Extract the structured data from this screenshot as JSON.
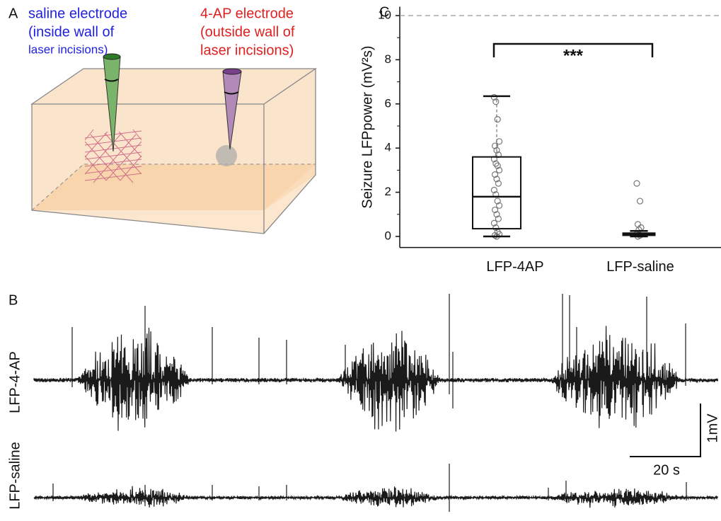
{
  "panel_labels": {
    "a": "A",
    "b": "B",
    "c": "C"
  },
  "diagram": {
    "saline_label": [
      "saline electrode",
      "(inside wall of",
      "laser incisions)"
    ],
    "ap_label": [
      "4-AP electrode",
      "(outside wall of",
      "laser incisions)"
    ]
  },
  "traces": {
    "labels": [
      "LFP-4-AP",
      "LFP-saline"
    ],
    "scale_y": "1mV",
    "scale_x": "20 s"
  },
  "chart_data": {
    "type": "box",
    "ylabel": "Seizure LFPpower (mV²s)",
    "categories": [
      "LFP-4AP",
      "LFP-saline"
    ],
    "boxes": [
      {
        "whisker_low": 0,
        "q1": 0.35,
        "median": 1.8,
        "q3": 3.6,
        "whisker_high": 6.35,
        "points": [
          6.3,
          6.1,
          5.3,
          4.3,
          4.1,
          3.9,
          3.7,
          3.5,
          3.3,
          3.2,
          3.0,
          2.8,
          2.6,
          2.4,
          2.1,
          1.9,
          1.6,
          1.4,
          1.2,
          1.0,
          0.8,
          0.6,
          0.4,
          0.2,
          0.1,
          0.05,
          0
        ]
      },
      {
        "whisker_low": 0,
        "q1": 0.05,
        "median": 0.1,
        "q3": 0.15,
        "whisker_high": 0.25,
        "points": [
          2.4,
          1.6,
          0.55,
          0.4,
          0.3,
          0.1,
          0.05,
          0
        ]
      }
    ],
    "ylim": [
      -0.5,
      10.4
    ],
    "yticks": [
      0,
      2,
      4,
      6,
      8,
      10
    ],
    "reference_line": 10,
    "significance": "***",
    "color": "#111111"
  }
}
